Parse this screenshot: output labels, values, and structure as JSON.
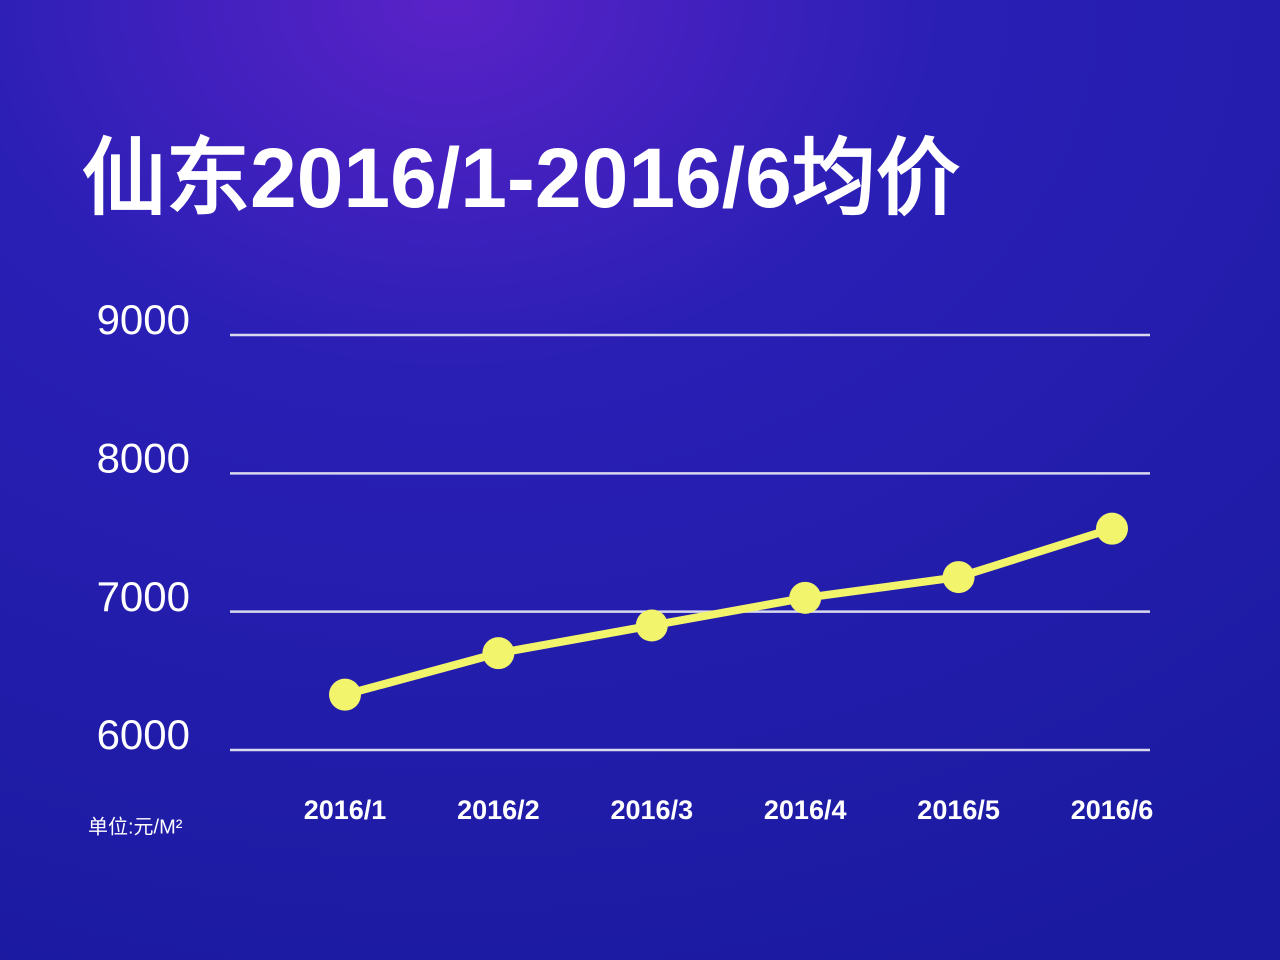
{
  "chart_data": {
    "type": "line",
    "title": "仙东2016/1-2016/6均价",
    "unit_label": "单位:元/M²",
    "categories": [
      "2016/1",
      "2016/2",
      "2016/3",
      "2016/4",
      "2016/5",
      "2016/6"
    ],
    "values": [
      6400,
      6700,
      6900,
      7100,
      7250,
      7600
    ],
    "color": "#f2f56b",
    "ylim": [
      6000,
      9000
    ],
    "yticks": [
      6000,
      7000,
      8000,
      9000
    ],
    "grid": true
  }
}
